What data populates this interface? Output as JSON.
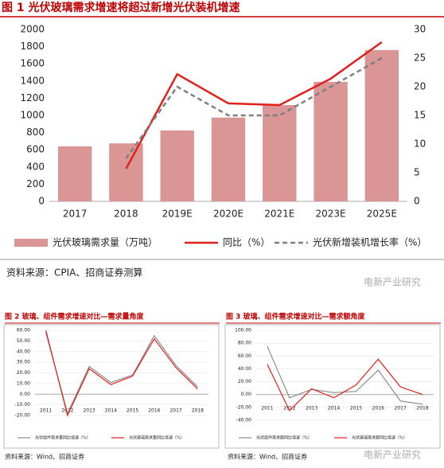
{
  "chart_data": [
    {
      "type": "combo",
      "title": "图 1 光伏玻璃需求增速将超过新增光伏装机增速",
      "categories": [
        "2017",
        "2018",
        "2019E",
        "2020E",
        "2021E",
        "2023E",
        "2025E"
      ],
      "series": [
        {
          "name": "光伏玻璃需求量（万吨）",
          "type": "bar",
          "color": "#d99694",
          "values": [
            640,
            675,
            825,
            975,
            1120,
            1390,
            1760
          ]
        },
        {
          "name": "同比（%）",
          "type": "line",
          "axis": "y2",
          "color": "#e0201b",
          "values": [
            null,
            5.7,
            22.2,
            17.1,
            16.8,
            21.4,
            27.8
          ]
        },
        {
          "name": "光伏新增装机增长率（%）",
          "type": "line",
          "axis": "y2",
          "dashed": true,
          "color": "#808080",
          "values": [
            null,
            7.5,
            20,
            15,
            15,
            20,
            25
          ]
        }
      ],
      "ylim": [
        0,
        2000
      ],
      "yticks": [
        0,
        200,
        400,
        600,
        800,
        1000,
        1200,
        1400,
        1600,
        1800,
        2000
      ],
      "y2lim": [
        0,
        30
      ],
      "y2ticks": [
        0,
        5,
        10,
        15,
        20,
        25,
        30
      ],
      "grid": false
    },
    {
      "type": "line",
      "title": "图 2 玻璃、组件需求增速对比—需求量角度",
      "categories": [
        "2011",
        "2012",
        "2013",
        "2014",
        "2015",
        "2016",
        "2017",
        "2018"
      ],
      "series": [
        {
          "name": "光伏组件需求量同比增速（%）",
          "color": "#8c8c8c",
          "values": [
            58,
            -18,
            26,
            11,
            18,
            55,
            27,
            7
          ]
        },
        {
          "name": "光伏玻璃需求量同比增速（%）",
          "color": "#e0201b",
          "values": [
            60,
            -20,
            24,
            9,
            17,
            52,
            25,
            5
          ]
        }
      ],
      "ylim": [
        -20,
        60
      ],
      "yticks": [
        {
          "value": -20,
          "label": "-20.00"
        },
        {
          "value": -10,
          "label": "-10.00"
        },
        {
          "value": 0,
          "label": "0.00"
        },
        {
          "value": 10,
          "label": "10.00"
        },
        {
          "value": 20,
          "label": "20.00"
        },
        {
          "value": 30,
          "label": "30.00"
        },
        {
          "value": 40,
          "label": "40.00"
        },
        {
          "value": 50,
          "label": "50.00"
        },
        {
          "value": 60,
          "label": "60.00"
        }
      ],
      "grid": true
    },
    {
      "type": "line",
      "title": "图 3 玻璃、组件需求增速对比—需求额角度",
      "categories": [
        "2011",
        "2012",
        "2013",
        "2014",
        "2015",
        "2016",
        "2017",
        "2018"
      ],
      "series": [
        {
          "name": "光伏组件需求额同比增速（%）",
          "color": "#8c8c8c",
          "values": [
            75,
            -5,
            8,
            3,
            5,
            38,
            -10,
            -15
          ]
        },
        {
          "name": "光伏玻璃需求额同比增速（%）",
          "color": "#e0201b",
          "values": [
            47,
            -25,
            9,
            -5,
            15,
            55,
            12,
            0
          ]
        }
      ],
      "ylim": [
        -40,
        100
      ],
      "yticks": [
        {
          "value": -40,
          "label": "-40.00"
        },
        {
          "value": -20,
          "label": "-20.00"
        },
        {
          "value": 0,
          "label": "0.00"
        },
        {
          "value": 20,
          "label": "20.00"
        },
        {
          "value": 40,
          "label": "40.00"
        },
        {
          "value": 60,
          "label": "60.00"
        },
        {
          "value": 80,
          "label": "80.00"
        },
        {
          "value": 100,
          "label": "100.00"
        }
      ],
      "grid": true
    }
  ],
  "sources": [
    "资料来源：CPIA、招商证券测算",
    "资料来源：Wind、招商证券",
    "资料来源：Wind、招商证券"
  ],
  "watermarks": [
    "电新产业研究",
    "电新产业研究"
  ]
}
